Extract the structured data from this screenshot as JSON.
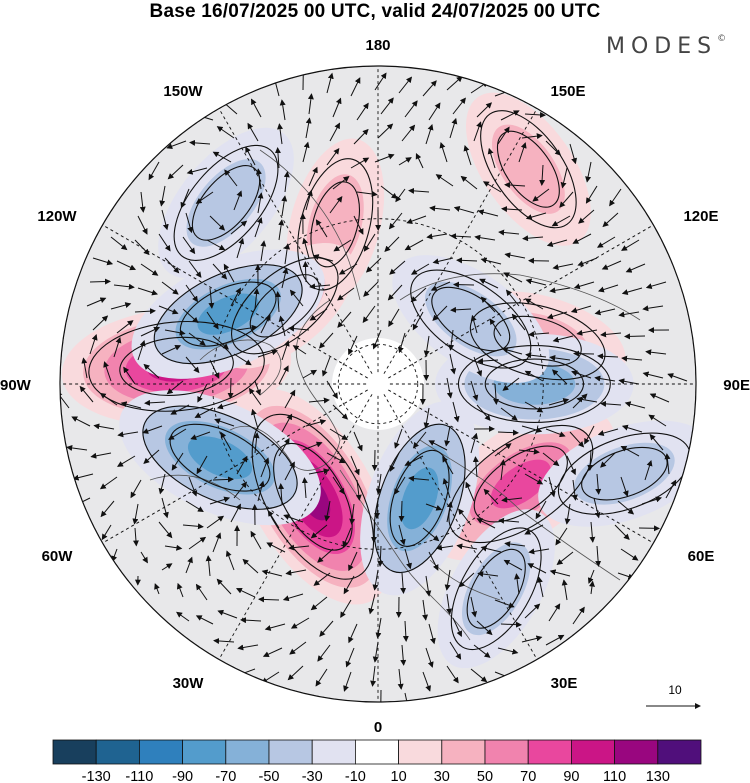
{
  "title": "Base 16/07/2025 00 UTC, valid 24/07/2025 00 UTC",
  "logo": {
    "text": "MODES",
    "mark": "©"
  },
  "map": {
    "projection": "north-polar-stereographic",
    "longitude_labels": {
      "top": "180",
      "bottom": "0",
      "left": "90W",
      "right": "90E",
      "upper_left_outer": "150W",
      "upper_left": "120W",
      "upper_right_outer": "150E",
      "upper_right": "120E",
      "lower_left": "60W",
      "lower_left_outer": "30W",
      "lower_right": "60E",
      "lower_right_outer": "30E"
    },
    "anomaly_centers": [
      {
        "lon": -95,
        "colat": 48,
        "value": 100
      },
      {
        "lon": -30,
        "colat": 32,
        "value": 110
      },
      {
        "lon": 55,
        "colat": 42,
        "value": 85
      },
      {
        "lon": 105,
        "colat": 40,
        "value": 45
      },
      {
        "lon": 145,
        "colat": 60,
        "value": 40
      },
      {
        "lon": -165,
        "colat": 40,
        "value": 40
      },
      {
        "lon": -130,
        "colat": 30,
        "value": 30
      },
      {
        "lon": -115,
        "colat": 40,
        "value": -75
      },
      {
        "lon": -140,
        "colat": 55,
        "value": -45
      },
      {
        "lon": -65,
        "colat": 42,
        "value": -85
      },
      {
        "lon": 20,
        "colat": 30,
        "value": -70
      },
      {
        "lon": 90,
        "colat": 38,
        "value": -65
      },
      {
        "lon": 125,
        "colat": 28,
        "value": -45
      },
      {
        "lon": 70,
        "colat": 60,
        "value": -45
      },
      {
        "lon": 30,
        "colat": 55,
        "value": -40
      }
    ]
  },
  "colorbar": {
    "colors": [
      "#183f5d",
      "#1f6391",
      "#2f80bd",
      "#539ccc",
      "#85b1d8",
      "#b7c7e3",
      "#e1e2f1",
      "#ffffff",
      "#f9dadd",
      "#f6b2c0",
      "#f183ae",
      "#e9479e",
      "#cb1586",
      "#99067f",
      "#500f7b"
    ],
    "labels": [
      "-130",
      "-110",
      "-90",
      "-70",
      "-50",
      "-30",
      "-10",
      "10",
      "30",
      "50",
      "70",
      "90",
      "110",
      "130"
    ]
  },
  "vector_reference": {
    "label": "10"
  }
}
